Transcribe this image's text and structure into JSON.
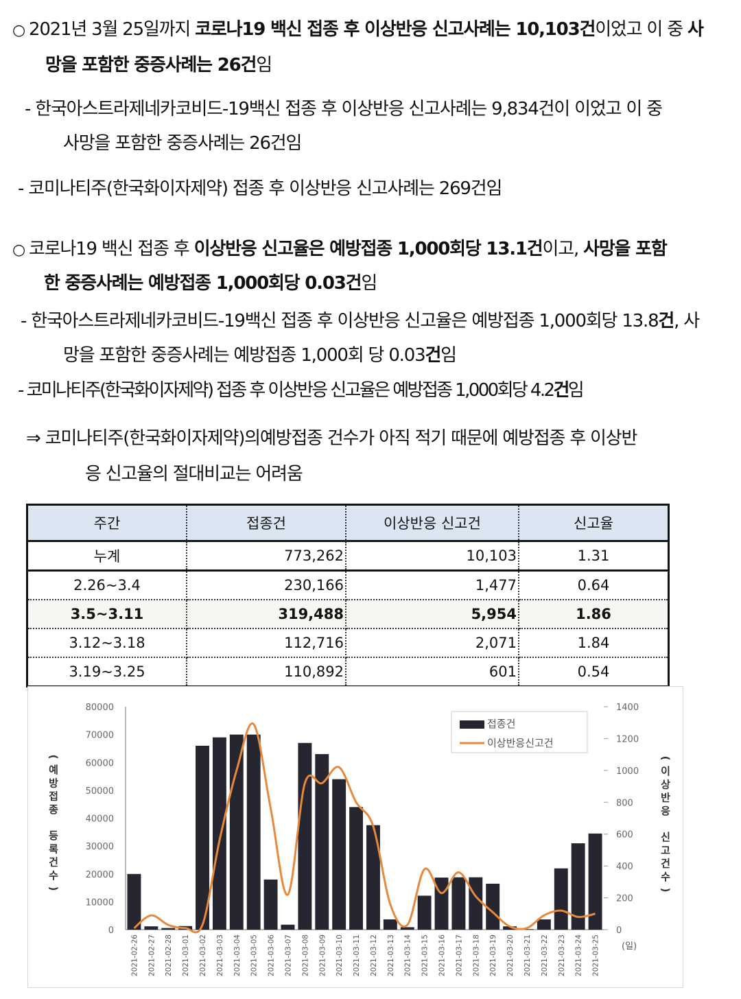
{
  "p1": {
    "bullet": "○",
    "l1": [
      [
        "2021년 3월 25일까지 ",
        false
      ],
      [
        "코로나19 백신 접종 후 이상반응 신고사례는 10,103건",
        true
      ],
      [
        "이었고 이 중 ",
        false
      ],
      [
        "사",
        true
      ]
    ],
    "l2": [
      [
        "망을 포함한 중증사례는 26건",
        true
      ],
      [
        "임",
        false
      ]
    ]
  },
  "p1a": {
    "l1": "-  한국아스트라제네카코비드-19백신 접종 후 이상반응 신고사례는 9,834건이 이었고  이  중",
    "l2": "사망을 포함한 중증사례는 26건임"
  },
  "p1b": {
    "l1": "- 코미나티주(한국화이자제약) 접종 후 이상반응 신고사례는 269건임"
  },
  "p2": {
    "bullet": "○",
    "l1": [
      [
        "코로나19 백신 접종 후 ",
        false
      ],
      [
        "이상반응 신고율은 예방접종 1,000회당 13.1건",
        true
      ],
      [
        "이고, ",
        false
      ],
      [
        "사망을 포함",
        true
      ]
    ],
    "l2": [
      [
        "한 중증사례는 예방접종 1,000회당 0.03건",
        true
      ],
      [
        "임",
        false
      ]
    ]
  },
  "p2a": {
    "l1": [
      [
        "- 한국아스트라제네카코비드-19백신 접종 후 이상반응 신고율은 예방접종 1,000회당 13.8",
        false
      ],
      [
        "건",
        true
      ],
      [
        ", 사",
        false
      ]
    ],
    "l2": [
      [
        "망을 포함한 중증사례는 예방접종 1,000회 당 0.03",
        false
      ],
      [
        "건",
        true
      ],
      [
        "임",
        false
      ]
    ]
  },
  "p2b": {
    "l1": [
      [
        "- 코미나티주(한국화이자제약) 접종 후 이상반응 신고율은 예방접종 1,000회당 4.2",
        false
      ],
      [
        "건",
        true
      ],
      [
        "임",
        false
      ]
    ]
  },
  "p3": {
    "l1": "⇒ 코미나티주(한국화이자제약)의예방접종 건수가 아직 적기 때문에 예방접종 후 이상반",
    "l2": "응 신고율의 절대비교는 어려움"
  },
  "table": {
    "headers": [
      "주간",
      "접종건",
      "이상반응 신고건",
      "신고율"
    ],
    "rows": [
      [
        "누계",
        "773,262",
        "10,103",
        "1.31"
      ],
      [
        "2.26~3.4",
        "230,166",
        "1,477",
        "0.64"
      ],
      [
        "3.5~3.11",
        "319,488",
        "5,954",
        "1.86"
      ],
      [
        "3.12~3.18",
        "112,716",
        "2,071",
        "1.84"
      ],
      [
        "3.19~3.25",
        "110,892",
        "601",
        "0.54"
      ]
    ],
    "highlight_row": 2
  },
  "chart_data": {
    "type": "bar",
    "categories": [
      "2021-02-26",
      "2021-02-27",
      "2021-02-28",
      "2021-03-01",
      "2021-03-02",
      "2021-03-03",
      "2021-03-04",
      "2021-03-05",
      "2021-03-06",
      "2021-03-07",
      "2021-03-08",
      "2021-03-09",
      "2021-03-10",
      "2021-03-11",
      "2021-03-12",
      "2021-03-13",
      "2021-03-14",
      "2021-03-15",
      "2021-03-16",
      "2021-03-17",
      "2021-03-18",
      "2021-03-19",
      "2021-03-20",
      "2021-03-21",
      "2021-03-22",
      "2021-03-23",
      "2021-03-24",
      "2021-03-25"
    ],
    "series": [
      {
        "name": "접종건",
        "type": "bar",
        "axis": "left",
        "color": "#262630",
        "values": [
          20000,
          1200,
          600,
          1300,
          66000,
          69000,
          70000,
          70000,
          18000,
          1800,
          67000,
          63000,
          54000,
          44000,
          37500,
          3700,
          900,
          12200,
          18700,
          18800,
          18800,
          16500,
          1200,
          200,
          3700,
          22000,
          31000,
          34500
        ]
      },
      {
        "name": "이상반응신고건",
        "type": "line",
        "axis": "right",
        "color": "#e8883a",
        "values": [
          10,
          90,
          30,
          10,
          30,
          560,
          1000,
          1290,
          760,
          220,
          920,
          920,
          1020,
          800,
          650,
          160,
          30,
          380,
          230,
          360,
          210,
          110,
          20,
          10,
          90,
          120,
          80,
          100
        ]
      }
    ],
    "ylabel": "(예방접종 등록건수)",
    "y2label": "(이상반응 신고건수)",
    "xunit": "(일)",
    "ylim": [
      0,
      80000
    ],
    "y2lim": [
      0,
      1400
    ],
    "yticks": [
      "0",
      "10000",
      "20000",
      "30000",
      "40000",
      "50000",
      "60000",
      "70000",
      "80000"
    ],
    "y2ticks": [
      "0",
      "200",
      "400",
      "600",
      "800",
      "1000",
      "1200",
      "1400"
    ],
    "grid": false,
    "legend": "top-right"
  }
}
